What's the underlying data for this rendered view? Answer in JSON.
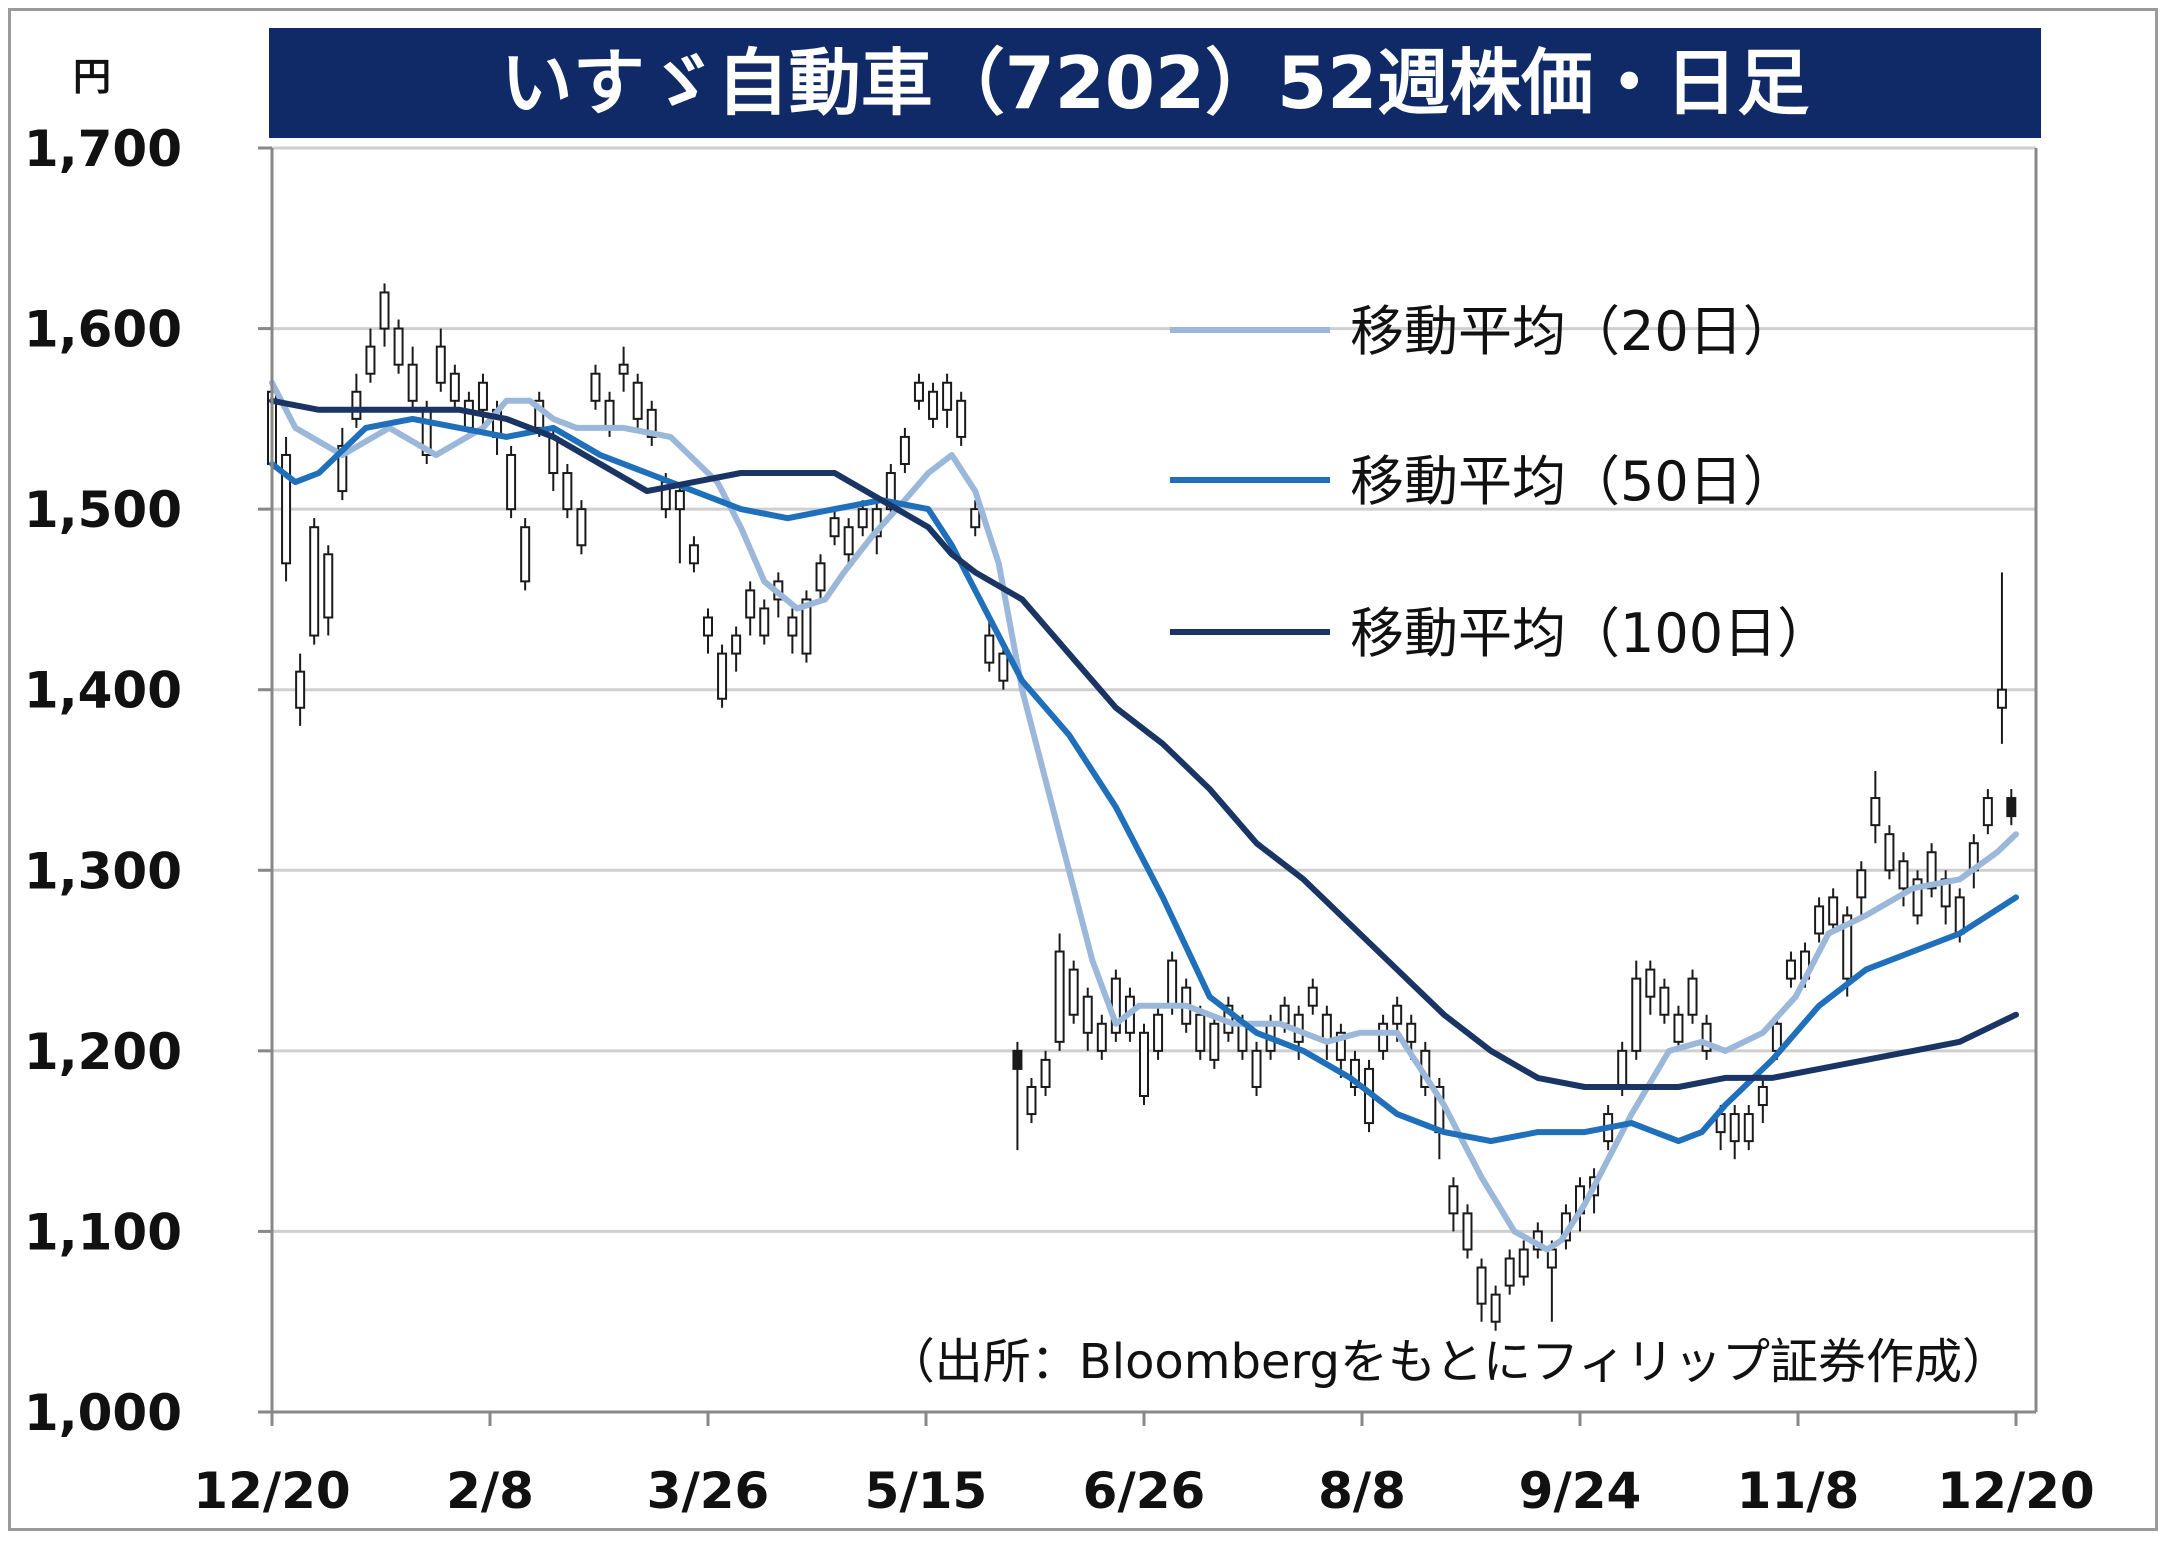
{
  "chart_data": {
    "type": "line",
    "title": "いすゞ自動車（7202）52週株価・日足",
    "unit_label": "円",
    "source": "（出所：Bloombergをもとにフィリップ証券作成）",
    "ylim": [
      1000,
      1700
    ],
    "y_ticks": [
      1000,
      1100,
      1200,
      1300,
      1400,
      1500,
      1600,
      1700
    ],
    "y_tick_labels": [
      "1,000",
      "1,100",
      "1,200",
      "1,300",
      "1,400",
      "1,500",
      "1,600",
      "1,700"
    ],
    "x_tick_labels": [
      "12/20",
      "2/8",
      "3/26",
      "5/15",
      "6/26",
      "8/8",
      "9/24",
      "11/8",
      "12/20"
    ],
    "grid": true,
    "legend_position": "top-right",
    "colors": {
      "title_bg": "#0f2a66",
      "ma20": "#9bb7da",
      "ma50": "#1f6fba",
      "ma100": "#1a3564",
      "candle": "#1a1a1a",
      "grid": "#cfcfcf"
    },
    "series": [
      {
        "name": "移動平均（20日）",
        "color": "#9bb7da",
        "x": [
          0,
          5,
          15,
          25,
          35,
          45,
          50,
          55,
          60,
          65,
          75,
          85,
          95,
          100,
          105,
          112,
          118,
          122,
          128,
          135,
          140,
          145,
          150,
          155,
          160,
          168,
          175,
          180,
          185,
          195,
          205,
          215,
          225,
          232,
          240,
          250,
          258,
          265,
          272,
          275,
          280,
          285,
          290,
          298,
          305,
          310,
          318,
          325,
          332,
          340,
          350,
          360,
          368,
          372
        ],
        "values": [
          1570,
          1545,
          1530,
          1545,
          1530,
          1545,
          1560,
          1560,
          1550,
          1545,
          1545,
          1540,
          1515,
          1490,
          1460,
          1445,
          1450,
          1465,
          1485,
          1505,
          1520,
          1530,
          1510,
          1470,
          1400,
          1320,
          1250,
          1215,
          1225,
          1225,
          1215,
          1215,
          1205,
          1210,
          1210,
          1170,
          1130,
          1100,
          1090,
          1095,
          1115,
          1140,
          1165,
          1200,
          1205,
          1200,
          1210,
          1230,
          1265,
          1275,
          1290,
          1295,
          1310,
          1320
        ]
      },
      {
        "name": "移動平均（50日）",
        "color": "#1f6fba",
        "x": [
          0,
          5,
          10,
          20,
          30,
          40,
          50,
          60,
          70,
          80,
          90,
          100,
          110,
          120,
          130,
          140,
          145,
          150,
          160,
          170,
          180,
          190,
          200,
          210,
          220,
          230,
          240,
          250,
          260,
          270,
          280,
          290,
          300,
          305,
          310,
          320,
          330,
          340,
          350,
          360,
          372
        ],
        "values": [
          1525,
          1515,
          1520,
          1545,
          1550,
          1545,
          1540,
          1545,
          1530,
          1520,
          1510,
          1500,
          1495,
          1500,
          1505,
          1500,
          1480,
          1455,
          1405,
          1375,
          1335,
          1285,
          1230,
          1210,
          1200,
          1185,
          1165,
          1155,
          1150,
          1155,
          1155,
          1160,
          1150,
          1155,
          1170,
          1195,
          1225,
          1245,
          1255,
          1265,
          1285
        ]
      },
      {
        "name": "移動平均（100日）",
        "color": "#1a3564",
        "x": [
          0,
          10,
          20,
          30,
          40,
          50,
          60,
          70,
          80,
          90,
          100,
          110,
          120,
          130,
          140,
          145,
          150,
          160,
          170,
          180,
          190,
          200,
          210,
          220,
          230,
          240,
          250,
          260,
          270,
          280,
          290,
          300,
          310,
          320,
          330,
          340,
          350,
          360,
          372
        ],
        "values": [
          1560,
          1555,
          1555,
          1555,
          1555,
          1550,
          1540,
          1525,
          1510,
          1515,
          1520,
          1520,
          1520,
          1505,
          1490,
          1475,
          1465,
          1450,
          1420,
          1390,
          1370,
          1345,
          1315,
          1295,
          1270,
          1245,
          1220,
          1200,
          1185,
          1180,
          1180,
          1180,
          1185,
          1185,
          1190,
          1195,
          1200,
          1205,
          1220
        ]
      }
    ],
    "candles": {
      "x_range": [
        0,
        372
      ],
      "points": [
        [
          0,
          1525,
          1565,
          1520,
          1570
        ],
        [
          3,
          1470,
          1530,
          1460,
          1540
        ],
        [
          6,
          1390,
          1410,
          1380,
          1420
        ],
        [
          9,
          1430,
          1490,
          1425,
          1495
        ],
        [
          12,
          1440,
          1475,
          1430,
          1480
        ],
        [
          15,
          1510,
          1535,
          1505,
          1545
        ],
        [
          18,
          1550,
          1565,
          1545,
          1575
        ],
        [
          21,
          1575,
          1590,
          1570,
          1600
        ],
        [
          24,
          1600,
          1620,
          1590,
          1625
        ],
        [
          27,
          1580,
          1600,
          1575,
          1605
        ],
        [
          30,
          1560,
          1580,
          1555,
          1590
        ],
        [
          33,
          1530,
          1555,
          1525,
          1560
        ],
        [
          36,
          1570,
          1590,
          1565,
          1600
        ],
        [
          39,
          1560,
          1575,
          1555,
          1580
        ],
        [
          42,
          1545,
          1560,
          1540,
          1565
        ],
        [
          45,
          1555,
          1570,
          1545,
          1575
        ],
        [
          48,
          1540,
          1555,
          1530,
          1560
        ],
        [
          51,
          1500,
          1530,
          1495,
          1535
        ],
        [
          54,
          1460,
          1490,
          1455,
          1495
        ],
        [
          57,
          1545,
          1560,
          1540,
          1565
        ],
        [
          60,
          1520,
          1540,
          1510,
          1545
        ],
        [
          63,
          1500,
          1520,
          1495,
          1525
        ],
        [
          66,
          1480,
          1500,
          1475,
          1505
        ],
        [
          69,
          1560,
          1575,
          1555,
          1580
        ],
        [
          72,
          1545,
          1560,
          1540,
          1565
        ],
        [
          75,
          1575,
          1580,
          1565,
          1590
        ],
        [
          78,
          1550,
          1570,
          1545,
          1575
        ],
        [
          81,
          1540,
          1555,
          1535,
          1560
        ],
        [
          84,
          1500,
          1515,
          1495,
          1520
        ],
        [
          87,
          1500,
          1510,
          1470,
          1515
        ],
        [
          90,
          1470,
          1480,
          1465,
          1485
        ],
        [
          93,
          1430,
          1440,
          1420,
          1445
        ],
        [
          96,
          1395,
          1420,
          1390,
          1425
        ],
        [
          99,
          1420,
          1430,
          1410,
          1435
        ],
        [
          102,
          1440,
          1455,
          1430,
          1460
        ],
        [
          105,
          1430,
          1445,
          1425,
          1450
        ],
        [
          108,
          1450,
          1460,
          1440,
          1465
        ],
        [
          111,
          1430,
          1440,
          1420,
          1445
        ],
        [
          114,
          1420,
          1450,
          1415,
          1455
        ],
        [
          117,
          1455,
          1470,
          1450,
          1475
        ],
        [
          120,
          1485,
          1495,
          1480,
          1500
        ],
        [
          123,
          1475,
          1490,
          1470,
          1495
        ],
        [
          126,
          1490,
          1500,
          1485,
          1505
        ],
        [
          129,
          1485,
          1500,
          1475,
          1505
        ],
        [
          132,
          1500,
          1520,
          1495,
          1525
        ],
        [
          135,
          1525,
          1540,
          1520,
          1545
        ],
        [
          138,
          1560,
          1570,
          1555,
          1575
        ],
        [
          141,
          1550,
          1565,
          1545,
          1570
        ],
        [
          144,
          1555,
          1570,
          1545,
          1575
        ],
        [
          147,
          1540,
          1560,
          1535,
          1565
        ],
        [
          150,
          1490,
          1500,
          1485,
          1505
        ],
        [
          153,
          1415,
          1430,
          1410,
          1440
        ],
        [
          156,
          1405,
          1420,
          1400,
          1425
        ],
        [
          159,
          1200,
          1190,
          1145,
          1205
        ],
        [
          162,
          1165,
          1180,
          1160,
          1185
        ],
        [
          165,
          1180,
          1195,
          1175,
          1200
        ],
        [
          168,
          1205,
          1255,
          1200,
          1265
        ],
        [
          171,
          1220,
          1245,
          1215,
          1250
        ],
        [
          174,
          1210,
          1230,
          1200,
          1235
        ],
        [
          177,
          1200,
          1215,
          1195,
          1220
        ],
        [
          180,
          1210,
          1240,
          1205,
          1245
        ],
        [
          183,
          1210,
          1230,
          1205,
          1235
        ],
        [
          186,
          1175,
          1210,
          1170,
          1215
        ],
        [
          189,
          1200,
          1220,
          1195,
          1225
        ],
        [
          192,
          1225,
          1250,
          1220,
          1255
        ],
        [
          195,
          1215,
          1235,
          1210,
          1240
        ],
        [
          198,
          1200,
          1220,
          1195,
          1225
        ],
        [
          201,
          1195,
          1215,
          1190,
          1220
        ],
        [
          204,
          1210,
          1225,
          1205,
          1230
        ],
        [
          207,
          1200,
          1215,
          1195,
          1220
        ],
        [
          210,
          1180,
          1200,
          1175,
          1205
        ],
        [
          213,
          1200,
          1215,
          1195,
          1220
        ],
        [
          216,
          1215,
          1225,
          1210,
          1230
        ],
        [
          219,
          1205,
          1220,
          1195,
          1225
        ],
        [
          222,
          1225,
          1235,
          1220,
          1240
        ],
        [
          225,
          1205,
          1220,
          1195,
          1225
        ],
        [
          228,
          1195,
          1210,
          1185,
          1215
        ],
        [
          231,
          1180,
          1195,
          1175,
          1200
        ],
        [
          234,
          1160,
          1190,
          1155,
          1195
        ],
        [
          237,
          1200,
          1215,
          1195,
          1220
        ],
        [
          240,
          1215,
          1225,
          1205,
          1230
        ],
        [
          243,
          1205,
          1215,
          1195,
          1220
        ],
        [
          246,
          1180,
          1200,
          1175,
          1205
        ],
        [
          249,
          1155,
          1180,
          1140,
          1185
        ],
        [
          252,
          1110,
          1125,
          1100,
          1130
        ],
        [
          255,
          1090,
          1110,
          1085,
          1115
        ],
        [
          258,
          1060,
          1080,
          1050,
          1085
        ],
        [
          261,
          1050,
          1065,
          1045,
          1070
        ],
        [
          264,
          1070,
          1085,
          1065,
          1090
        ],
        [
          267,
          1075,
          1090,
          1070,
          1095
        ],
        [
          270,
          1090,
          1100,
          1085,
          1105
        ],
        [
          273,
          1080,
          1090,
          1050,
          1095
        ],
        [
          276,
          1095,
          1110,
          1090,
          1115
        ],
        [
          279,
          1110,
          1125,
          1100,
          1130
        ],
        [
          282,
          1120,
          1130,
          1110,
          1135
        ],
        [
          285,
          1150,
          1165,
          1145,
          1170
        ],
        [
          288,
          1180,
          1200,
          1175,
          1205
        ],
        [
          291,
          1200,
          1240,
          1195,
          1250
        ],
        [
          294,
          1230,
          1245,
          1220,
          1250
        ],
        [
          297,
          1220,
          1235,
          1215,
          1240
        ],
        [
          300,
          1205,
          1220,
          1200,
          1225
        ],
        [
          303,
          1220,
          1240,
          1215,
          1245
        ],
        [
          306,
          1200,
          1215,
          1195,
          1220
        ],
        [
          309,
          1155,
          1165,
          1145,
          1170
        ],
        [
          312,
          1150,
          1165,
          1140,
          1170
        ],
        [
          315,
          1150,
          1165,
          1145,
          1170
        ],
        [
          318,
          1170,
          1180,
          1160,
          1185
        ],
        [
          321,
          1200,
          1215,
          1195,
          1220
        ],
        [
          324,
          1240,
          1250,
          1235,
          1255
        ],
        [
          327,
          1240,
          1255,
          1235,
          1260
        ],
        [
          330,
          1265,
          1280,
          1260,
          1285
        ],
        [
          333,
          1270,
          1285,
          1265,
          1290
        ],
        [
          336,
          1240,
          1275,
          1230,
          1280
        ],
        [
          339,
          1285,
          1300,
          1275,
          1305
        ],
        [
          342,
          1325,
          1340,
          1315,
          1355
        ],
        [
          345,
          1300,
          1320,
          1295,
          1325
        ],
        [
          348,
          1290,
          1305,
          1280,
          1310
        ],
        [
          351,
          1275,
          1295,
          1270,
          1300
        ],
        [
          354,
          1290,
          1310,
          1285,
          1315
        ],
        [
          357,
          1280,
          1295,
          1270,
          1300
        ],
        [
          360,
          1265,
          1285,
          1260,
          1290
        ],
        [
          363,
          1300,
          1315,
          1290,
          1320
        ],
        [
          366,
          1325,
          1340,
          1320,
          1345
        ],
        [
          369,
          1390,
          1400,
          1370,
          1465
        ],
        [
          371,
          1340,
          1330,
          1325,
          1345
        ]
      ]
    }
  },
  "legend": [
    {
      "label": "移動平均（20日）",
      "color": "#9bb7da"
    },
    {
      "label": "移動平均（50日）",
      "color": "#1f6fba"
    },
    {
      "label": "移動平均（100日）",
      "color": "#1a3564"
    }
  ]
}
